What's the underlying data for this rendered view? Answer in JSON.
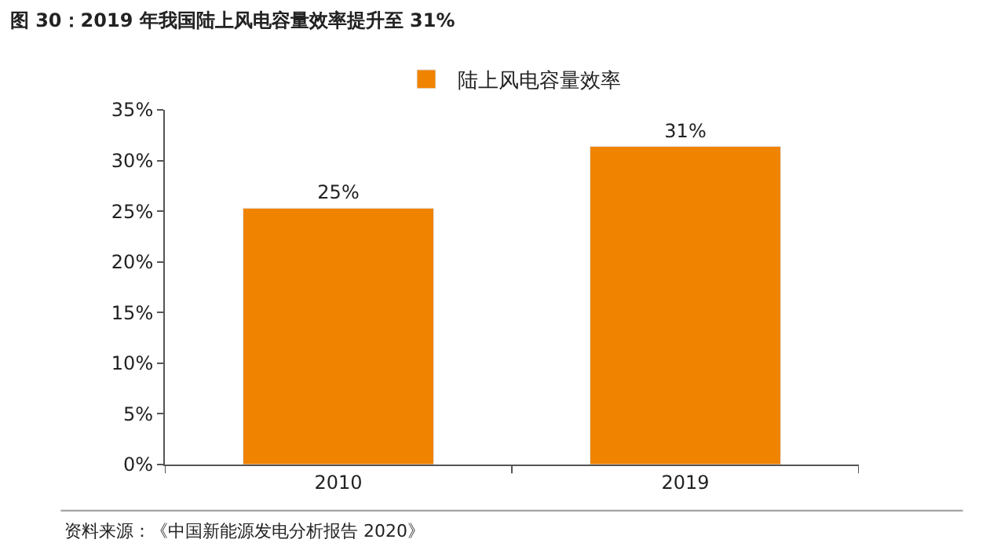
{
  "chart_data": {
    "type": "bar",
    "title": "图 30：2019 年我国陆上风电容量效率提升至 31%",
    "categories": [
      "2010",
      "2019"
    ],
    "series": [
      {
        "name": "陆上风电容量效率",
        "color": "#f08300",
        "values": [
          25.3,
          31.4
        ],
        "value_labels": [
          "25%",
          "31%"
        ]
      }
    ],
    "ylim": [
      0,
      35
    ],
    "yticks": [
      {
        "value": 0,
        "label": "0%"
      },
      {
        "value": 5,
        "label": "5%"
      },
      {
        "value": 10,
        "label": "10%"
      },
      {
        "value": 15,
        "label": "15%"
      },
      {
        "value": 20,
        "label": "20%"
      },
      {
        "value": 25,
        "label": "25%"
      },
      {
        "value": 30,
        "label": "30%"
      },
      {
        "value": 35,
        "label": "35%"
      }
    ],
    "legend": "top",
    "annotations": [
      "资料来源：《中国新能源发电分析报告 2020》"
    ]
  }
}
